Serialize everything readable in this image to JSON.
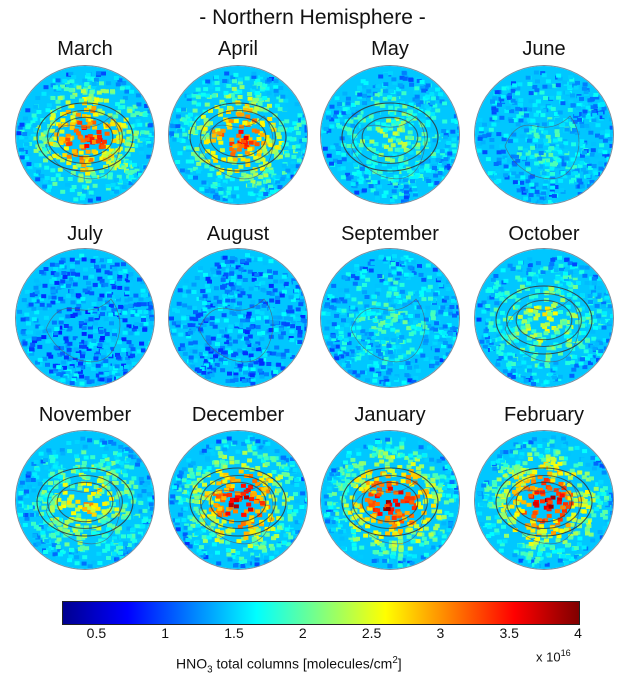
{
  "title": "- Northern Hemisphere -",
  "months": [
    {
      "name": "March",
      "level": 0.8
    },
    {
      "name": "April",
      "level": 0.78
    },
    {
      "name": "May",
      "level": 0.48
    },
    {
      "name": "June",
      "level": 0.38
    },
    {
      "name": "July",
      "level": 0.25
    },
    {
      "name": "August",
      "level": 0.27
    },
    {
      "name": "September",
      "level": 0.4
    },
    {
      "name": "October",
      "level": 0.55
    },
    {
      "name": "November",
      "level": 0.62
    },
    {
      "name": "December",
      "level": 0.85
    },
    {
      "name": "January",
      "level": 0.88
    },
    {
      "name": "February",
      "level": 0.86
    }
  ],
  "colorbar": {
    "ticks": [
      "0.5",
      "1",
      "1.5",
      "2",
      "2.5",
      "3",
      "3.5",
      "4"
    ],
    "min": 0.25,
    "max": 4,
    "scale_prefix": "x 10",
    "scale_exp": "16",
    "label_main": "HNO",
    "label_sub": "3",
    "label_rest": " total columns   [molecules/cm",
    "label_sup": "2",
    "label_end": "]",
    "colors": [
      "#00008f",
      "#0000ff",
      "#0080ff",
      "#00ffff",
      "#80ff80",
      "#ffff00",
      "#ff8000",
      "#ff0000",
      "#800000"
    ]
  }
}
